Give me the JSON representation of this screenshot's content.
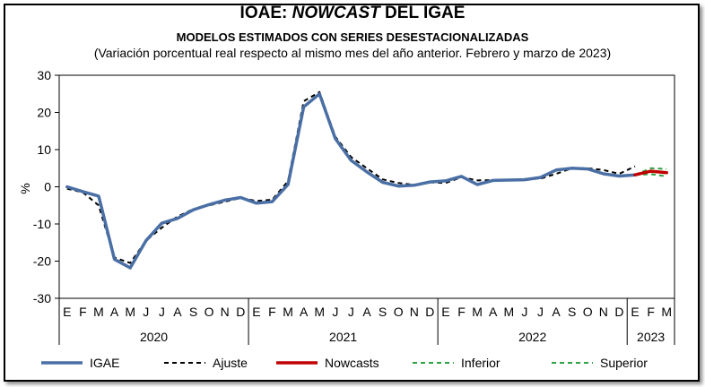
{
  "title": {
    "prefix": "IOAE: ",
    "italic": "NOWCAST",
    "suffix": " DEL IGAE"
  },
  "subtitle": "MODELOS ESTIMADOS CON SERIES DESESTACIONALIZADAS",
  "note": "(Variación porcentual real respecto al mismo mes del año anterior. Febrero y marzo de 2023)",
  "chart_data": {
    "type": "line",
    "ylabel": "%",
    "ylim": [
      -30,
      30
    ],
    "yticks": [
      30,
      20,
      10,
      0,
      -10,
      -20,
      -30
    ],
    "grid": false,
    "legend_position": "bottom",
    "month_labels": [
      "E",
      "F",
      "M",
      "A",
      "M",
      "J",
      "J",
      "A",
      "S",
      "O",
      "N",
      "D",
      "E",
      "F",
      "M",
      "A",
      "M",
      "J",
      "J",
      "A",
      "S",
      "O",
      "N",
      "D",
      "E",
      "F",
      "M",
      "A",
      "M",
      "J",
      "J",
      "A",
      "S",
      "O",
      "N",
      "D",
      "E",
      "F",
      "M"
    ],
    "years": [
      {
        "label": "2020",
        "start": 0,
        "end": 11
      },
      {
        "label": "2021",
        "start": 12,
        "end": 23
      },
      {
        "label": "2022",
        "start": 24,
        "end": 35
      },
      {
        "label": "2023",
        "start": 36,
        "end": 38
      }
    ],
    "series": [
      {
        "name": "IGAE",
        "color": "#4A6FA5",
        "style": "solid",
        "start_index": 0,
        "values": [
          0,
          -1.3,
          -2.5,
          -19.5,
          -21.8,
          -14.5,
          -9.8,
          -8.5,
          -6.2,
          -4.8,
          -3.6,
          -2.9,
          -4.4,
          -4.0,
          0.6,
          21.5,
          25.0,
          13.0,
          7.1,
          4.0,
          1.2,
          0.2,
          0.4,
          1.3,
          1.6,
          2.8,
          0.6,
          1.7,
          1.8,
          1.9,
          2.5,
          4.5,
          5.0,
          4.8,
          3.5,
          2.9,
          3.2
        ]
      },
      {
        "name": "Ajuste",
        "color": "#000000",
        "style": "dashed",
        "start_index": 0,
        "values": [
          -0.5,
          -1.5,
          -5.0,
          -19.0,
          -20.5,
          -14.5,
          -11.0,
          -8.0,
          -6.0,
          -5.0,
          -4.0,
          -3.0,
          -3.8,
          -3.5,
          1.5,
          23.0,
          25.5,
          13.5,
          8.0,
          5.0,
          2.0,
          1.0,
          0.5,
          1.2,
          1.0,
          2.6,
          1.7,
          1.8,
          1.9,
          2.1,
          2.2,
          3.5,
          5.0,
          5.0,
          4.5,
          3.5,
          5.5
        ]
      },
      {
        "name": "Nowcasts",
        "color": "#C00000",
        "style": "solid",
        "start_index": 36,
        "values": [
          3.2,
          4.2,
          3.8
        ]
      },
      {
        "name": "Inferior",
        "color": "#2EA043",
        "style": "dashed",
        "start_index": 36,
        "values": [
          3.2,
          3.4,
          2.8
        ]
      },
      {
        "name": "Superior",
        "color": "#2EA043",
        "style": "dashed",
        "start_index": 36,
        "values": [
          3.2,
          5.0,
          4.8
        ]
      }
    ]
  }
}
